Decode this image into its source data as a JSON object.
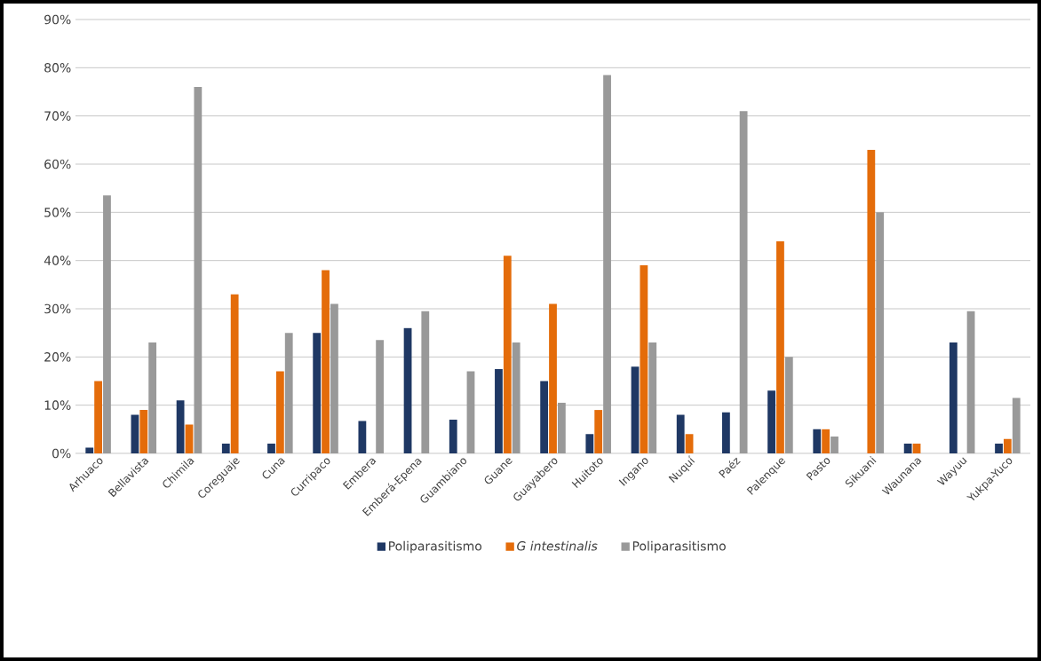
{
  "chart_data": {
    "type": "bar",
    "categories": [
      "Arhuaco",
      "Bellavista",
      "Chimila",
      "Coreguaje",
      "Cuna",
      "Curripaco",
      "Embera",
      "Emberá-Epena",
      "Guambiano",
      "Guane",
      "Guayabero",
      "Huitoto",
      "Ingano",
      "Nuquí",
      "Paéz",
      "Palenque",
      "Pasto",
      "Sikuani",
      "Waunana",
      "Wayuu",
      "Yukpa-Yuco"
    ],
    "series": [
      {
        "name": "Poliparasitismo",
        "color": "#1f3864",
        "values": [
          1.2,
          8,
          11,
          2,
          2,
          25,
          6.7,
          26,
          7,
          17.5,
          15,
          4,
          18,
          8,
          8.5,
          13,
          5,
          null,
          2,
          23,
          2
        ]
      },
      {
        "name": "*G intestinalis*",
        "color": "#e46c0a",
        "values": [
          15,
          9,
          6,
          33,
          17,
          38,
          null,
          null,
          null,
          41,
          31,
          9,
          39,
          4,
          null,
          44,
          5,
          63,
          2,
          null,
          3
        ]
      },
      {
        "name": "Poliparasitismo",
        "color": "#999999",
        "values": [
          53.5,
          23,
          76,
          null,
          25,
          31,
          23.5,
          29.5,
          17,
          23,
          10.5,
          78.5,
          23,
          null,
          71,
          20,
          3.5,
          50,
          null,
          29.5,
          11.5
        ]
      }
    ],
    "ylim": [
      0,
      90
    ],
    "yticks": [
      {
        "value": 0,
        "label": "0%"
      },
      {
        "value": 10,
        "label": "10%"
      },
      {
        "value": 20,
        "label": "20%"
      },
      {
        "value": 30,
        "label": "30%"
      },
      {
        "value": 40,
        "label": "40%"
      },
      {
        "value": 50,
        "label": "50%"
      },
      {
        "value": 60,
        "label": "60%"
      },
      {
        "value": 70,
        "label": "70%"
      },
      {
        "value": 80,
        "label": "80%"
      },
      {
        "value": 90,
        "label": "90%"
      }
    ],
    "grid": "y",
    "legend": "bottom"
  }
}
